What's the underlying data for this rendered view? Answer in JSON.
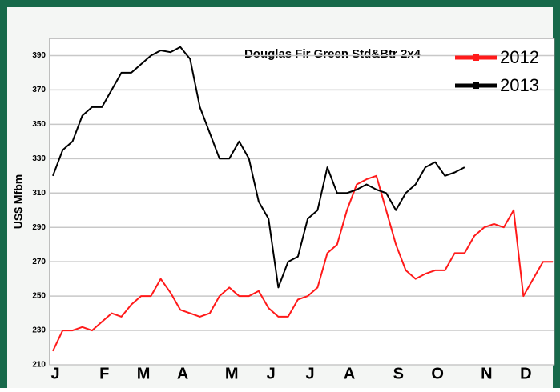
{
  "chart_data": {
    "type": "line",
    "title": "Douglas Fir Green Std&Btr 2x4",
    "y_label": "US$ Mfbm",
    "categories": [
      "J",
      null,
      null,
      null,
      null,
      "F",
      null,
      null,
      null,
      "M",
      null,
      null,
      null,
      "A",
      null,
      null,
      null,
      null,
      "M",
      null,
      null,
      null,
      "J",
      null,
      null,
      null,
      "J",
      null,
      null,
      null,
      "A",
      null,
      null,
      null,
      null,
      "S",
      null,
      null,
      null,
      "O",
      null,
      null,
      null,
      null,
      "N",
      null,
      null,
      null,
      "D",
      null,
      null,
      null
    ],
    "series": [
      {
        "name": "2012",
        "color": "#ff1a1a",
        "values": [
          218,
          230,
          230,
          232,
          230,
          235,
          240,
          238,
          245,
          250,
          250,
          260,
          252,
          242,
          240,
          238,
          240,
          250,
          255,
          250,
          250,
          253,
          243,
          238,
          238,
          248,
          250,
          255,
          275,
          280,
          300,
          315,
          318,
          320,
          300,
          280,
          265,
          260,
          263,
          265,
          265,
          275,
          275,
          285,
          290,
          292,
          290,
          300,
          250,
          260,
          270,
          270
        ]
      },
      {
        "name": "2013",
        "color": "#000000",
        "values": [
          320,
          335,
          340,
          355,
          360,
          360,
          370,
          380,
          380,
          385,
          390,
          393,
          392,
          395,
          388,
          360,
          345,
          330,
          330,
          340,
          330,
          305,
          295,
          255,
          270,
          273,
          295,
          300,
          325,
          310,
          310,
          312,
          315,
          312,
          310,
          300,
          310,
          315,
          325,
          328,
          320,
          322,
          325,
          null,
          null,
          null,
          null,
          null,
          null,
          null,
          null,
          null
        ]
      }
    ],
    "ylim": [
      210,
      400
    ],
    "yticks": [
      210,
      230,
      250,
      270,
      290,
      310,
      330,
      350,
      370,
      390
    ],
    "grid": true,
    "legend": "top-right"
  }
}
